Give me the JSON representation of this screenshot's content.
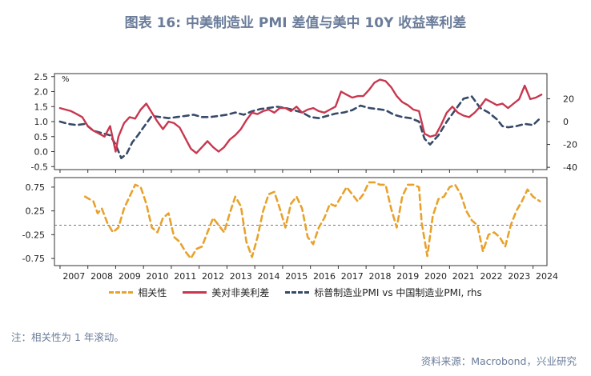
{
  "title": "图表 16: 中美制造业 PMI 差值与美中 10Y 收益率利差",
  "note": "注：相关性为 1 年滚动。",
  "source": "资料来源：Macrobond，兴业研究",
  "colors": {
    "spread": "#c8374f",
    "pmi": "#364a68",
    "corr": "#e8a22c",
    "title": "#6a7c99"
  },
  "chart_data": [
    {
      "type": "line",
      "unit_label_left": "%",
      "ylim_left": [
        -0.6,
        2.6
      ],
      "yticks_left": [
        "2.5",
        "2.0",
        "1.5",
        "1.0",
        "0.5",
        "0.0",
        "-0.5"
      ],
      "ylim_right": [
        -42,
        42
      ],
      "yticks_right": [
        "20",
        "0",
        "-20",
        "-40"
      ],
      "series": [
        {
          "name": "美对非美利差",
          "axis": "left",
          "style": "solid",
          "color": "#c8374f",
          "x": [
            2007.0,
            2007.2,
            2007.4,
            2007.6,
            2007.8,
            2008.0,
            2008.2,
            2008.4,
            2008.6,
            2008.8,
            2009.0,
            2009.1,
            2009.3,
            2009.5,
            2009.7,
            2009.9,
            2010.1,
            2010.3,
            2010.5,
            2010.7,
            2010.9,
            2011.1,
            2011.3,
            2011.5,
            2011.7,
            2011.9,
            2012.1,
            2012.3,
            2012.5,
            2012.7,
            2012.9,
            2013.1,
            2013.3,
            2013.5,
            2013.7,
            2013.9,
            2014.1,
            2014.3,
            2014.5,
            2014.7,
            2014.9,
            2015.1,
            2015.3,
            2015.5,
            2015.7,
            2015.9,
            2016.1,
            2016.3,
            2016.5,
            2016.7,
            2016.9,
            2017.1,
            2017.3,
            2017.5,
            2017.7,
            2017.9,
            2018.1,
            2018.3,
            2018.5,
            2018.7,
            2018.9,
            2019.1,
            2019.3,
            2019.5,
            2019.7,
            2019.9,
            2020.1,
            2020.3,
            2020.5,
            2020.7,
            2020.9,
            2021.1,
            2021.3,
            2021.5,
            2021.7,
            2021.9,
            2022.1,
            2022.3,
            2022.5,
            2022.7,
            2022.9,
            2023.1,
            2023.3,
            2023.5,
            2023.7,
            2023.9,
            2024.1,
            2024.3
          ],
          "values": [
            1.45,
            1.4,
            1.35,
            1.25,
            1.15,
            0.85,
            0.7,
            0.6,
            0.5,
            0.85,
            0.0,
            0.5,
            0.95,
            1.15,
            1.1,
            1.4,
            1.6,
            1.3,
            1.0,
            0.75,
            1.0,
            0.95,
            0.8,
            0.45,
            0.1,
            -0.05,
            0.15,
            0.35,
            0.15,
            0.0,
            0.15,
            0.4,
            0.55,
            0.75,
            1.05,
            1.3,
            1.25,
            1.35,
            1.4,
            1.3,
            1.45,
            1.45,
            1.35,
            1.5,
            1.3,
            1.4,
            1.45,
            1.35,
            1.3,
            1.4,
            1.5,
            2.0,
            1.9,
            1.8,
            1.85,
            1.85,
            2.05,
            2.3,
            2.4,
            2.35,
            2.15,
            1.85,
            1.65,
            1.55,
            1.4,
            1.35,
            0.6,
            0.5,
            0.55,
            0.9,
            1.3,
            1.5,
            1.3,
            1.2,
            1.15,
            1.3,
            1.5,
            1.75,
            1.65,
            1.55,
            1.6,
            1.45,
            1.6,
            1.75,
            2.2,
            1.75,
            1.8,
            1.9
          ]
        },
        {
          "name": "标普制造业PMI vs 中国制造业PMI, rhs",
          "axis": "right",
          "style": "dashed",
          "color": "#364a68",
          "x": [
            2007.0,
            2007.3,
            2007.6,
            2007.9,
            2008.2,
            2008.5,
            2008.8,
            2009.0,
            2009.2,
            2009.4,
            2009.6,
            2009.8,
            2010.0,
            2010.3,
            2010.6,
            2010.9,
            2011.2,
            2011.5,
            2011.8,
            2012.1,
            2012.4,
            2012.7,
            2013.0,
            2013.3,
            2013.6,
            2013.9,
            2014.2,
            2014.5,
            2014.8,
            2015.1,
            2015.4,
            2015.7,
            2016.0,
            2016.3,
            2016.6,
            2016.9,
            2017.2,
            2017.5,
            2017.8,
            2018.1,
            2018.4,
            2018.7,
            2019.0,
            2019.3,
            2019.6,
            2019.9,
            2020.1,
            2020.3,
            2020.6,
            2020.9,
            2021.2,
            2021.5,
            2021.8,
            2022.1,
            2022.4,
            2022.7,
            2022.9,
            2023.1,
            2023.4,
            2023.7,
            2024.0,
            2024.3
          ],
          "values": [
            0,
            -2,
            -3,
            -2,
            -8,
            -10,
            -12,
            -20,
            -32,
            -28,
            -18,
            -12,
            -5,
            5,
            4,
            3,
            4,
            5,
            6,
            4,
            4,
            5,
            6,
            8,
            6,
            9,
            11,
            12,
            13,
            12,
            10,
            8,
            4,
            3,
            5,
            7,
            8,
            10,
            14,
            12,
            11,
            10,
            6,
            4,
            3,
            0,
            -15,
            -20,
            -12,
            0,
            10,
            20,
            22,
            12,
            8,
            2,
            -4,
            -5,
            -4,
            -2,
            -3,
            4
          ]
        }
      ]
    },
    {
      "type": "line",
      "ylim": [
        -0.9,
        0.95
      ],
      "yticks": [
        "0.75",
        "0.25",
        "-0.25",
        "-0.75"
      ],
      "reference_line": -0.05,
      "series": [
        {
          "name": "相关性",
          "style": "dashed",
          "color": "#e8a22c",
          "x": [
            2007.9,
            2008.05,
            2008.2,
            2008.35,
            2008.5,
            2008.7,
            2008.9,
            2009.1,
            2009.3,
            2009.5,
            2009.7,
            2009.9,
            2010.1,
            2010.3,
            2010.5,
            2010.7,
            2010.9,
            2011.1,
            2011.3,
            2011.5,
            2011.7,
            2011.9,
            2012.1,
            2012.3,
            2012.5,
            2012.7,
            2012.9,
            2013.1,
            2013.3,
            2013.5,
            2013.7,
            2013.9,
            2014.1,
            2014.3,
            2014.5,
            2014.7,
            2014.9,
            2015.1,
            2015.3,
            2015.5,
            2015.7,
            2015.9,
            2016.1,
            2016.3,
            2016.5,
            2016.7,
            2016.9,
            2017.1,
            2017.3,
            2017.5,
            2017.7,
            2017.9,
            2018.1,
            2018.3,
            2018.5,
            2018.7,
            2018.9,
            2019.1,
            2019.3,
            2019.5,
            2019.7,
            2019.9,
            2020.0,
            2020.2,
            2020.4,
            2020.6,
            2020.8,
            2021.0,
            2021.2,
            2021.4,
            2021.6,
            2021.8,
            2022.0,
            2022.2,
            2022.4,
            2022.6,
            2022.8,
            2023.0,
            2023.2,
            2023.4,
            2023.6,
            2023.8,
            2024.0,
            2024.25
          ],
          "values": [
            0.55,
            0.5,
            0.45,
            0.2,
            0.3,
            0.0,
            -0.2,
            -0.1,
            0.3,
            0.55,
            0.8,
            0.75,
            0.4,
            -0.1,
            -0.2,
            0.1,
            0.2,
            -0.3,
            -0.4,
            -0.6,
            -0.75,
            -0.55,
            -0.5,
            -0.2,
            0.1,
            -0.05,
            -0.2,
            0.2,
            0.55,
            0.35,
            -0.4,
            -0.72,
            -0.3,
            0.25,
            0.6,
            0.65,
            0.3,
            -0.1,
            0.4,
            0.55,
            0.3,
            -0.3,
            -0.45,
            -0.1,
            0.1,
            0.4,
            0.35,
            0.55,
            0.75,
            0.6,
            0.45,
            0.6,
            0.85,
            0.85,
            0.8,
            0.8,
            0.3,
            -0.1,
            0.55,
            0.8,
            0.8,
            0.75,
            0.0,
            -0.7,
            0.15,
            0.5,
            0.55,
            0.75,
            0.8,
            0.6,
            0.25,
            0.05,
            -0.05,
            -0.6,
            -0.25,
            -0.2,
            -0.3,
            -0.5,
            -0.05,
            0.25,
            0.45,
            0.7,
            0.55,
            0.45
          ]
        }
      ]
    }
  ],
  "x_axis": {
    "ticks": [
      "2007",
      "2008",
      "2009",
      "2010",
      "2011",
      "2012",
      "2013",
      "2014",
      "2015",
      "2016",
      "2017",
      "2018",
      "2019",
      "2020",
      "2021",
      "2022",
      "2023",
      "2024"
    ],
    "range": [
      2006.8,
      2024.5
    ]
  },
  "legend": [
    {
      "label": "相关性",
      "style": "dashed",
      "color": "#e8a22c"
    },
    {
      "label": "美对非美利差",
      "style": "solid",
      "color": "#c8374f"
    },
    {
      "label": "标普制造业PMI vs 中国制造业PMI, rhs",
      "style": "dashed",
      "color": "#364a68"
    }
  ]
}
